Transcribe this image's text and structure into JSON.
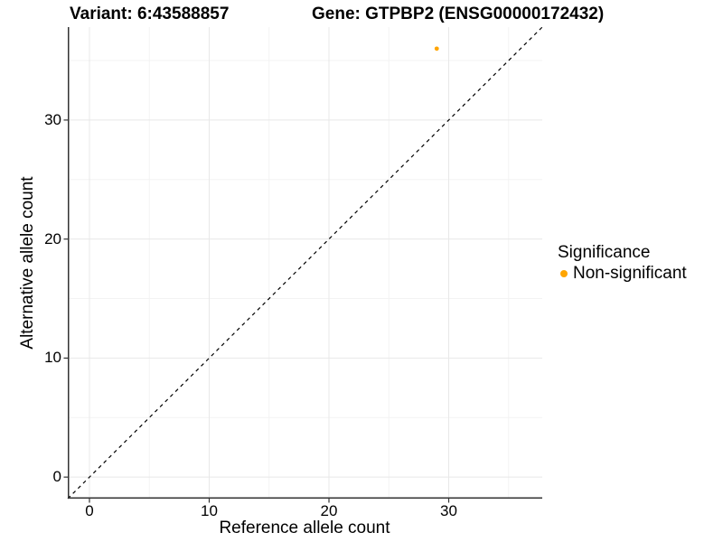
{
  "header": {
    "variant_title": "Variant: 6:43588857",
    "gene_title": "Gene: GTPBP2 (ENSG00000172432)"
  },
  "chart_data": {
    "type": "scatter",
    "xlabel": "Reference allele count",
    "ylabel": "Alternative allele count",
    "xlim": [
      -1.81,
      37.81
    ],
    "ylim": [
      -1.81,
      37.81
    ],
    "x_ticks": [
      0,
      10,
      20,
      30
    ],
    "y_ticks": [
      0,
      10,
      20,
      30
    ],
    "x_minor_ticks": [
      5,
      15,
      25,
      35
    ],
    "y_minor_ticks": [
      5,
      15,
      25,
      35
    ],
    "grid": "major+minor",
    "legend_position": "right",
    "points": [
      {
        "x": 29,
        "y": 36,
        "significance": "Non-significant"
      }
    ],
    "identity_line": {
      "equation": "y = x",
      "style": "dashed"
    }
  },
  "legend": {
    "title": "Significance",
    "items": [
      {
        "label": "Non-significant",
        "color": "#FFA500",
        "marker": "circle"
      }
    ]
  },
  "colors": {
    "background": "#FFFFFF",
    "text": "#000000",
    "axis_line": "#333333",
    "tick_mark": "#333333",
    "grid_major": "#E8E8E8",
    "grid_minor": "#F3F3F3",
    "identity_line": "#000000",
    "point": "#FFA500"
  }
}
